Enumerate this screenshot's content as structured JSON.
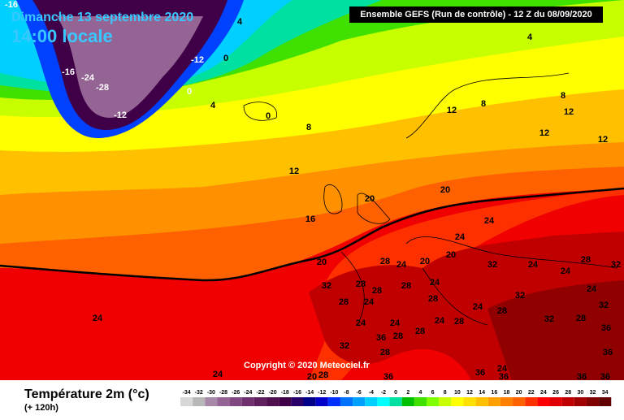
{
  "header": {
    "date": "Dimanche 13 septembre 2020",
    "time": "14:00 locale",
    "run": "Ensemble GEFS  (Run de contrôle)  - 12 Z du 08/09/2020"
  },
  "map": {
    "labels": [
      -16,
      4,
      -12,
      -16,
      -24,
      -28,
      0,
      0,
      4,
      -12,
      0,
      8,
      4,
      8,
      8,
      12,
      12,
      12,
      12,
      12,
      20,
      20,
      16,
      24,
      24,
      20,
      28,
      24,
      20,
      20,
      32,
      24,
      28,
      32,
      32,
      28,
      28,
      28,
      24,
      32,
      24,
      24,
      28,
      24,
      28,
      24,
      28,
      32,
      24,
      24,
      24,
      24,
      28,
      32,
      28,
      36,
      36,
      28,
      28,
      32,
      28,
      36,
      24,
      28,
      36,
      24,
      36,
      20,
      36,
      36,
      36
    ]
  },
  "copyright": "Copyright © 2020 Meteociel.fr",
  "legend": {
    "title": "Température 2m (°c)",
    "lead": "(+ 120h)",
    "scale": [
      {
        "value": -34,
        "color": "#d8d8d8"
      },
      {
        "value": -32,
        "color": "#b8b8b8"
      },
      {
        "value": -30,
        "color": "#a888a8"
      },
      {
        "value": -28,
        "color": "#946494"
      },
      {
        "value": -26,
        "color": "#804880"
      },
      {
        "value": -24,
        "color": "#703070"
      },
      {
        "value": -22,
        "color": "#602060"
      },
      {
        "value": -20,
        "color": "#501050"
      },
      {
        "value": -18,
        "color": "#400048"
      },
      {
        "value": -16,
        "color": "#280068"
      },
      {
        "value": -14,
        "color": "#000088"
      },
      {
        "value": -12,
        "color": "#0000c8"
      },
      {
        "value": -10,
        "color": "#0030ff"
      },
      {
        "value": -8,
        "color": "#0070ff"
      },
      {
        "value": -6,
        "color": "#00a0ff"
      },
      {
        "value": -4,
        "color": "#00d0ff"
      },
      {
        "value": -2,
        "color": "#00ffff"
      },
      {
        "value": 0,
        "color": "#00e0a0"
      },
      {
        "value": 2,
        "color": "#00c000"
      },
      {
        "value": 4,
        "color": "#40e000"
      },
      {
        "value": 6,
        "color": "#80ff00"
      },
      {
        "value": 8,
        "color": "#c8ff00"
      },
      {
        "value": 10,
        "color": "#ffff00"
      },
      {
        "value": 12,
        "color": "#ffe000"
      },
      {
        "value": 14,
        "color": "#ffc000"
      },
      {
        "value": 16,
        "color": "#ffa000"
      },
      {
        "value": 18,
        "color": "#ff8000"
      },
      {
        "value": 20,
        "color": "#ff6000"
      },
      {
        "value": 22,
        "color": "#ff3000"
      },
      {
        "value": 24,
        "color": "#ff0000"
      },
      {
        "value": 26,
        "color": "#e00000"
      },
      {
        "value": 28,
        "color": "#c00000"
      },
      {
        "value": 30,
        "color": "#a00000"
      },
      {
        "value": 32,
        "color": "#800000"
      },
      {
        "value": 34,
        "color": "#600000"
      }
    ]
  }
}
